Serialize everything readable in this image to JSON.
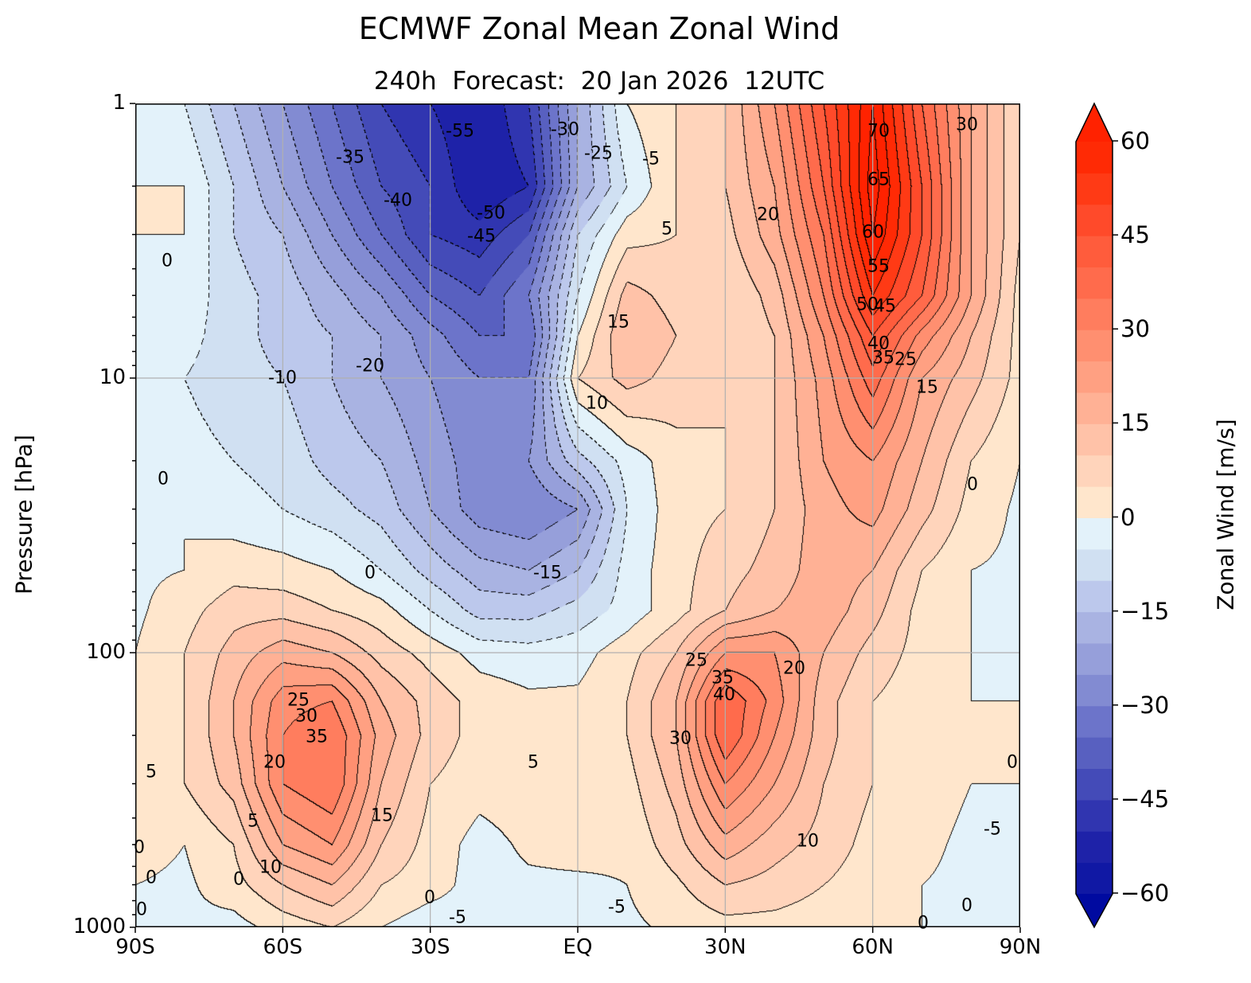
{
  "chart_data": {
    "type": "heatmap",
    "subtype": "filled-contour",
    "title": "ECMWF Zonal Mean Zonal Wind",
    "subtitle": "240h  Forecast:  20 Jan 2026  12UTC",
    "xlabel": "",
    "ylabel": "Pressure [hPa]",
    "colorbar_label": "Zonal Wind [m/s]",
    "x_ticks": [
      "90S",
      "60S",
      "30S",
      "EQ",
      "30N",
      "60N",
      "90N"
    ],
    "y_ticks": [
      "1",
      "10",
      "100",
      "1000"
    ],
    "colorbar_ticks": [
      "60",
      "45",
      "30",
      "15",
      "0",
      "−15",
      "−30",
      "−45",
      "−60"
    ],
    "xlim": [
      -90,
      90
    ],
    "ylim": [
      1000,
      1
    ],
    "y_scale": "log",
    "grid": true,
    "contour_interval": 5,
    "levels_range": [
      -60,
      60
    ],
    "colors": [
      "#1018a4",
      "#1e22a8",
      "#3035b0",
      "#444bb8",
      "#5860c0",
      "#6c74ca",
      "#828bd2",
      "#969fda",
      "#a9b3e2",
      "#bcc8ec",
      "#d0e0f2",
      "#e3f2fa",
      "#ffe6cc",
      "#ffd4bb",
      "#ffc2a8",
      "#ffb195",
      "#ffa082",
      "#ff8f70",
      "#ff7d5e",
      "#ff6b4c",
      "#ff5c3c",
      "#ff4a2a",
      "#ff3a15",
      "#ff2a05"
    ],
    "under_color": "#000aa0",
    "over_color": "#ff2200",
    "lat": [
      -90,
      -80,
      -70,
      -60,
      -50,
      -40,
      -30,
      -20,
      -10,
      0,
      10,
      20,
      30,
      40,
      50,
      60,
      70,
      80,
      90
    ],
    "pressure": [
      1,
      2,
      3,
      5,
      7,
      10,
      20,
      30,
      50,
      70,
      100,
      150,
      200,
      300,
      500,
      700,
      1000
    ],
    "wind": [
      [
        0,
        -5,
        -15,
        -25,
        -35,
        -45,
        -50,
        -55,
        -45,
        -20,
        0,
        5,
        10,
        25,
        45,
        65,
        40,
        20,
        5
      ],
      [
        0,
        0,
        -10,
        -20,
        -30,
        -40,
        -45,
        -55,
        -50,
        -20,
        -5,
        5,
        10,
        20,
        40,
        68,
        45,
        20,
        5
      ],
      [
        0,
        0,
        -10,
        -15,
        -25,
        -35,
        -45,
        -48,
        -40,
        -10,
        3,
        5,
        8,
        18,
        35,
        65,
        45,
        20,
        5
      ],
      [
        0,
        -2,
        -8,
        -12,
        -18,
        -25,
        -35,
        -40,
        -30,
        -5,
        12,
        8,
        5,
        12,
        30,
        55,
        40,
        20,
        3
      ],
      [
        0,
        -3,
        -8,
        -12,
        -15,
        -20,
        -28,
        -35,
        -35,
        0,
        15,
        10,
        5,
        10,
        25,
        45,
        28,
        15,
        3
      ],
      [
        -2,
        -5,
        -8,
        -10,
        -15,
        -20,
        -25,
        -30,
        -30,
        5,
        12,
        8,
        5,
        10,
        22,
        38,
        20,
        12,
        3
      ],
      [
        0,
        -3,
        -5,
        -7,
        -12,
        -15,
        -22,
        -28,
        -25,
        -12,
        -3,
        3,
        5,
        10,
        20,
        25,
        15,
        5,
        0
      ],
      [
        0,
        0,
        -3,
        -5,
        -8,
        -12,
        -20,
        -28,
        -30,
        -25,
        -5,
        3,
        5,
        10,
        18,
        22,
        12,
        3,
        -1
      ],
      [
        -1,
        0,
        3,
        2,
        0,
        -5,
        -12,
        -18,
        -20,
        -15,
        -3,
        3,
        8,
        12,
        18,
        15,
        5,
        0,
        -1
      ],
      [
        -1,
        3,
        8,
        8,
        5,
        2,
        -5,
        -12,
        -12,
        -8,
        -3,
        3,
        10,
        15,
        18,
        12,
        3,
        0,
        -1
      ],
      [
        0,
        5,
        12,
        18,
        15,
        8,
        3,
        -2,
        -3,
        -2,
        3,
        10,
        25,
        25,
        15,
        8,
        3,
        0,
        -1
      ],
      [
        0,
        5,
        15,
        28,
        30,
        15,
        8,
        3,
        1,
        1,
        5,
        15,
        40,
        28,
        12,
        5,
        2,
        0,
        0
      ],
      [
        2,
        5,
        15,
        30,
        35,
        18,
        8,
        3,
        2,
        3,
        5,
        15,
        40,
        25,
        12,
        5,
        2,
        0,
        0
      ],
      [
        3,
        5,
        12,
        30,
        35,
        15,
        5,
        2,
        3,
        5,
        3,
        12,
        30,
        20,
        10,
        5,
        2,
        0,
        0
      ],
      [
        2,
        0,
        5,
        20,
        25,
        10,
        3,
        -2,
        1,
        2,
        1,
        8,
        18,
        12,
        8,
        3,
        1,
        -1,
        0
      ],
      [
        0,
        -1,
        3,
        10,
        15,
        5,
        2,
        -2,
        -1,
        -1,
        0,
        4,
        10,
        8,
        5,
        2,
        0,
        -1,
        0
      ],
      [
        0,
        -1,
        -2,
        2,
        5,
        0,
        -3,
        -2,
        -2,
        -4,
        -1,
        1,
        3,
        3,
        2,
        0,
        0,
        -1,
        0
      ]
    ],
    "contour_labels": [
      "-55",
      "-30",
      "-35",
      "-25",
      "-5",
      "-40",
      "70",
      "30",
      "65",
      "-50",
      "20",
      "-45",
      "5",
      "60",
      "0",
      "55",
      "50",
      "45",
      "15",
      "40",
      "35",
      "25",
      "-20",
      "-10",
      "15",
      "10",
      "0",
      "0",
      "-15",
      "0",
      "25",
      "20",
      "35",
      "40",
      "25",
      "30",
      "35",
      "30",
      "20",
      "5",
      "0",
      "5",
      "15",
      "5",
      "-5",
      "10",
      "0",
      "10",
      "0",
      "0",
      "0",
      "-5",
      "-5",
      "0",
      "0",
      "0"
    ]
  }
}
